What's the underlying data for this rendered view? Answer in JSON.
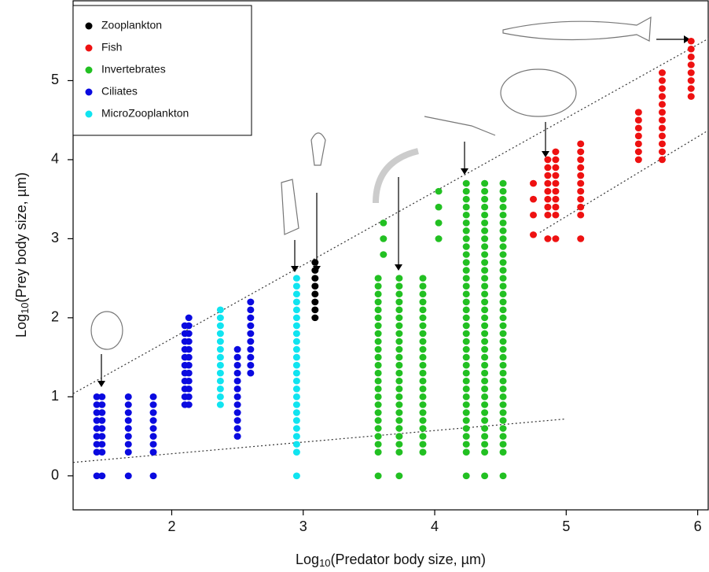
{
  "chart_data": {
    "type": "scatter",
    "x_label": [
      "Log",
      "10",
      "(Predator body size, µm)"
    ],
    "y_label": [
      "Log",
      "10",
      "(Prey body size, µm)"
    ],
    "xlim": [
      1.25,
      6.08
    ],
    "ylim": [
      -0.43,
      6.01
    ],
    "xticks": [
      2,
      3,
      4,
      5,
      6
    ],
    "yticks": [
      0,
      1,
      2,
      3,
      4,
      5
    ],
    "legend": "upper left",
    "series": [
      {
        "name": "Zooplankton",
        "color": "#000000",
        "stripes": [
          {
            "x": 3.09,
            "y": [
              2.0,
              2.1,
              2.2,
              2.3,
              2.4,
              2.5,
              2.6,
              2.7
            ]
          }
        ]
      },
      {
        "name": "Fish",
        "color": "#ee1111",
        "stripes": [
          {
            "x": 4.75,
            "y": [
              3.05,
              3.3,
              3.5,
              3.7
            ]
          },
          {
            "x": 4.86,
            "y": [
              3.0,
              3.3,
              3.4,
              3.5,
              3.6,
              3.7,
              3.8,
              3.9,
              4.0
            ]
          },
          {
            "x": 4.92,
            "y": [
              3.0,
              3.3,
              3.4,
              3.5,
              3.6,
              3.7,
              3.8,
              3.9,
              4.0,
              4.1
            ]
          },
          {
            "x": 5.11,
            "y": [
              3.0,
              3.3,
              3.4,
              3.5,
              3.6,
              3.7,
              3.8,
              3.9,
              4.0,
              4.1,
              4.2
            ]
          },
          {
            "x": 5.55,
            "y": [
              4.0,
              4.1,
              4.2,
              4.3,
              4.4,
              4.5,
              4.6
            ]
          },
          {
            "x": 5.73,
            "y": [
              4.0,
              4.1,
              4.2,
              4.3,
              4.4,
              4.5,
              4.6,
              4.7,
              4.8,
              4.9,
              5.0,
              5.1
            ]
          },
          {
            "x": 5.95,
            "y": [
              4.8,
              4.9,
              5.0,
              5.1,
              5.2,
              5.3,
              5.4,
              5.5
            ]
          }
        ]
      },
      {
        "name": "Invertebrates",
        "color": "#22c022",
        "stripes": [
          {
            "x": 3.57,
            "y": [
              0,
              0.3,
              0.4,
              0.5,
              0.6,
              0.7,
              0.8,
              0.9,
              1.0,
              1.1,
              1.2,
              1.3,
              1.4,
              1.5,
              1.6,
              1.7,
              1.8,
              1.9,
              2.0,
              2.1,
              2.2,
              2.3,
              2.4,
              2.5
            ]
          },
          {
            "x": 3.61,
            "y": [
              2.8,
              3.0,
              3.2
            ]
          },
          {
            "x": 3.73,
            "y": [
              0,
              0.3,
              0.4,
              0.5,
              0.6,
              0.7,
              0.8,
              0.9,
              1.0,
              1.1,
              1.2,
              1.3,
              1.4,
              1.5,
              1.6,
              1.7,
              1.8,
              1.9,
              2.0,
              2.1,
              2.2,
              2.3,
              2.4,
              2.5
            ]
          },
          {
            "x": 3.91,
            "y": [
              0.3,
              0.4,
              0.5,
              0.6,
              0.7,
              0.8,
              0.9,
              1.0,
              1.1,
              1.2,
              1.3,
              1.4,
              1.5,
              1.6,
              1.7,
              1.8,
              1.9,
              2.0,
              2.1,
              2.2,
              2.3,
              2.4,
              2.5
            ]
          },
          {
            "x": 4.03,
            "y": [
              3.0,
              3.2,
              3.4,
              3.6
            ]
          },
          {
            "x": 4.24,
            "y": [
              0,
              0.3,
              0.4,
              0.5,
              0.6,
              0.7,
              0.8,
              0.9,
              1.0,
              1.1,
              1.2,
              1.3,
              1.4,
              1.5,
              1.6,
              1.7,
              1.8,
              1.9,
              2.0,
              2.1,
              2.2,
              2.3,
              2.4,
              2.5,
              2.6,
              2.7,
              2.8,
              2.9,
              3.0,
              3.1,
              3.2,
              3.3,
              3.4,
              3.5,
              3.6,
              3.7
            ]
          },
          {
            "x": 4.38,
            "y": [
              0,
              0.3,
              0.4,
              0.5,
              0.6,
              0.7,
              0.8,
              0.9,
              1.0,
              1.1,
              1.2,
              1.3,
              1.4,
              1.5,
              1.6,
              1.7,
              1.8,
              1.9,
              2.0,
              2.1,
              2.2,
              2.3,
              2.4,
              2.5,
              2.6,
              2.7,
              2.8,
              2.9,
              3.0,
              3.1,
              3.2,
              3.3,
              3.4,
              3.5,
              3.6,
              3.7
            ]
          },
          {
            "x": 4.52,
            "y": [
              0,
              0.3,
              0.4,
              0.5,
              0.6,
              0.7,
              0.8,
              0.9,
              1.0,
              1.1,
              1.2,
              1.3,
              1.4,
              1.5,
              1.6,
              1.7,
              1.8,
              1.9,
              2.0,
              2.1,
              2.2,
              2.3,
              2.4,
              2.5,
              2.6,
              2.7,
              2.8,
              2.9,
              3.0,
              3.1,
              3.2,
              3.3,
              3.4,
              3.5,
              3.6,
              3.7
            ]
          }
        ]
      },
      {
        "name": "Ciliates",
        "color": "#0a0ae0",
        "stripes": [
          {
            "x": 1.43,
            "y": [
              0,
              0.3,
              0.4,
              0.5,
              0.6,
              0.7,
              0.8,
              0.9,
              1.0
            ]
          },
          {
            "x": 1.47,
            "y": [
              0,
              0.3,
              0.4,
              0.5,
              0.6,
              0.7,
              0.8,
              0.9,
              1.0
            ]
          },
          {
            "x": 1.67,
            "y": [
              0,
              0.3,
              0.4,
              0.5,
              0.6,
              0.7,
              0.8,
              0.9,
              1.0
            ]
          },
          {
            "x": 1.86,
            "y": [
              0,
              0.3,
              0.4,
              0.5,
              0.6,
              0.7,
              0.8,
              0.9,
              1.0
            ]
          },
          {
            "x": 2.1,
            "y": [
              0.9,
              1.0,
              1.1,
              1.2,
              1.3,
              1.4,
              1.5,
              1.6,
              1.7,
              1.8,
              1.9
            ]
          },
          {
            "x": 2.13,
            "y": [
              0.9,
              1.0,
              1.1,
              1.2,
              1.3,
              1.4,
              1.5,
              1.6,
              1.7,
              1.8,
              1.9,
              2.0
            ]
          },
          {
            "x": 2.5,
            "y": [
              0.5,
              0.6,
              0.7,
              0.8,
              0.9,
              1.0,
              1.1,
              1.2,
              1.3,
              1.4,
              1.5,
              1.6
            ]
          },
          {
            "x": 2.6,
            "y": [
              1.3,
              1.4,
              1.5,
              1.6,
              1.7,
              1.8,
              1.9,
              2.0,
              2.1,
              2.2
            ]
          }
        ]
      },
      {
        "name": "MicroZooplankton",
        "color": "#10e4f0",
        "stripes": [
          {
            "x": 2.37,
            "y": [
              0.9,
              1.0,
              1.1,
              1.2,
              1.3,
              1.4,
              1.5,
              1.6,
              1.7,
              1.8,
              1.9,
              2.0,
              2.1
            ]
          },
          {
            "x": 2.95,
            "y": [
              0,
              0.3,
              0.4,
              0.5,
              0.6,
              0.7,
              0.8,
              0.9,
              1.0,
              1.1,
              1.2,
              1.3,
              1.4,
              1.5,
              1.6,
              1.7,
              1.8,
              1.9,
              2.0,
              2.1,
              2.2,
              2.3,
              2.4,
              2.5
            ]
          }
        ]
      }
    ],
    "trend_lines": [
      {
        "x": [
          1.25,
          6.08
        ],
        "y": [
          1.04,
          5.53
        ]
      },
      {
        "x": [
          4.8,
          6.08
        ],
        "y": [
          3.08,
          4.37
        ]
      },
      {
        "x": [
          1.25,
          5.0
        ],
        "y": [
          0.17,
          0.72
        ]
      }
    ]
  }
}
